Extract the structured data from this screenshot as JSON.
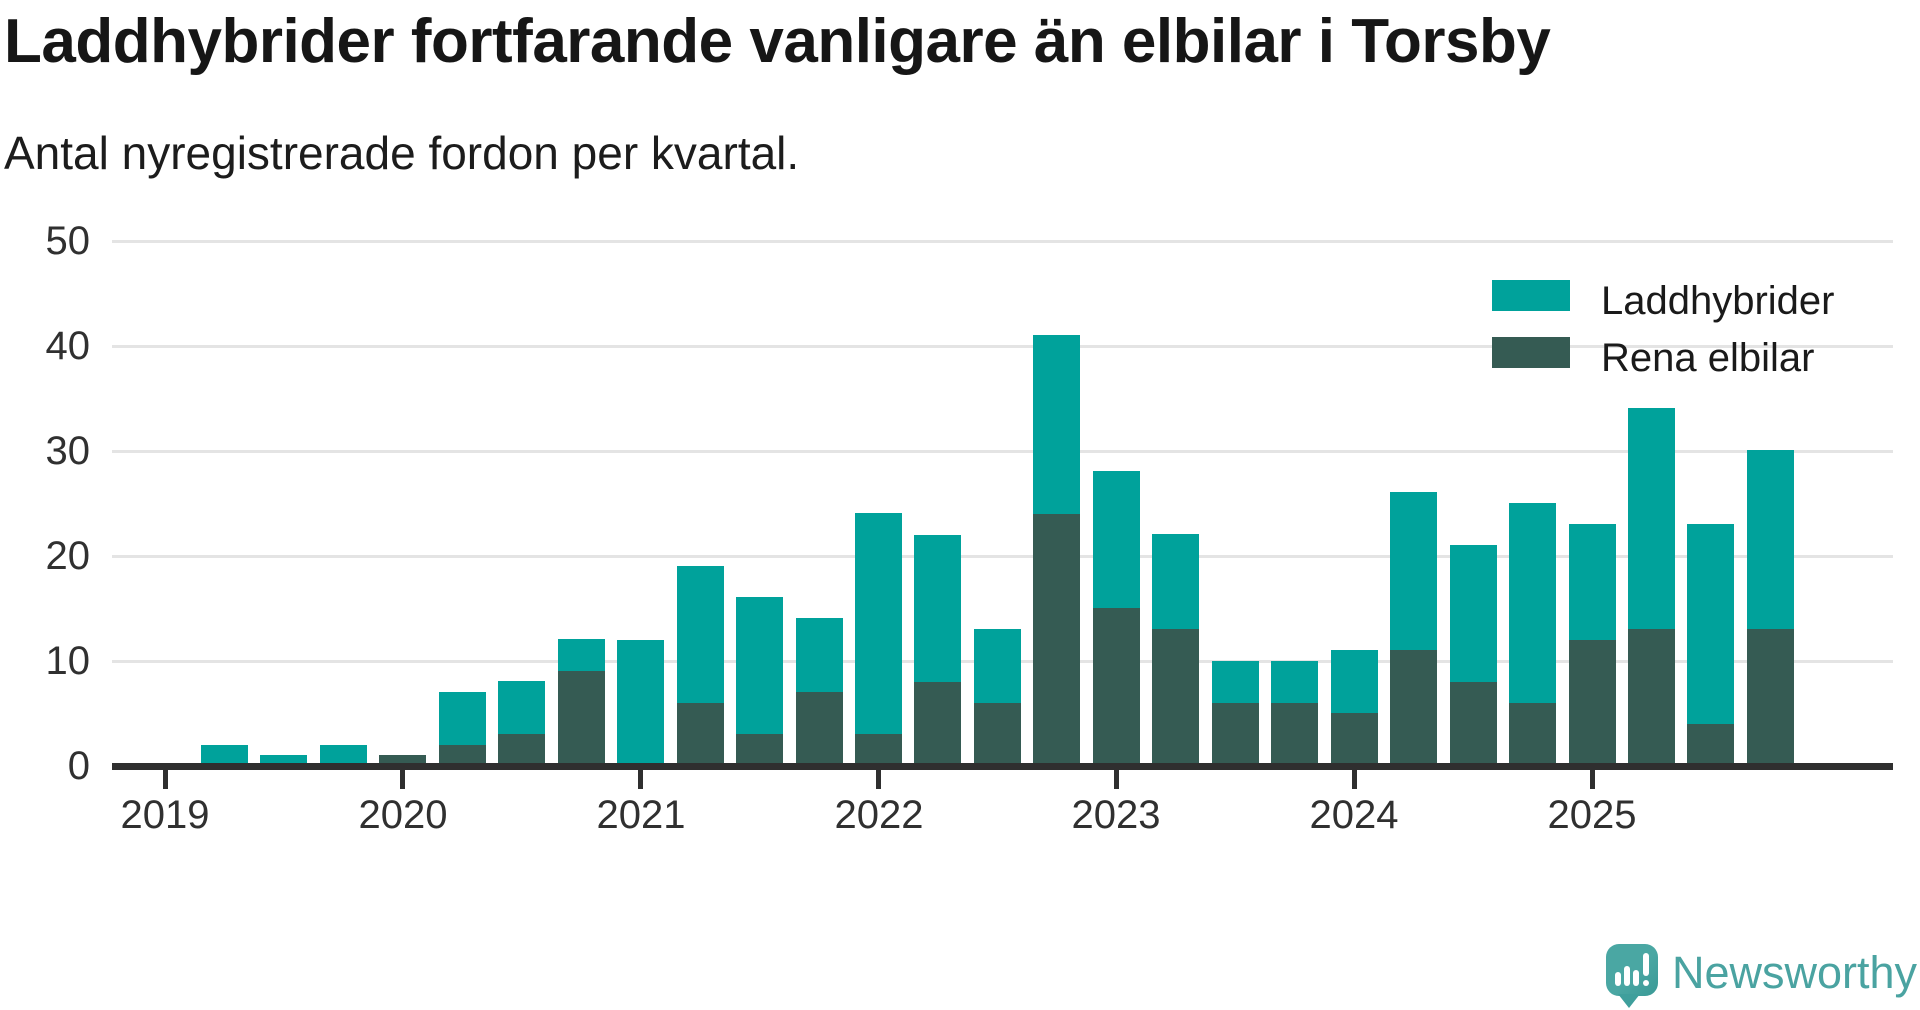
{
  "title": "Laddhybrider fortfarande vanligare än elbilar i Torsby",
  "subtitle": "Antal nyregistrerade fordon per kvartal.",
  "colors": {
    "laddhybrider": "#00a29b",
    "rena_elbilar": "#355b53",
    "gridline": "#e4e4e4",
    "axis": "#2f2f2f",
    "text": "#303030",
    "logo": "#4aa3a1"
  },
  "legend": {
    "items": [
      {
        "label": "Laddhybrider",
        "color": "#00a29b"
      },
      {
        "label": "Rena elbilar",
        "color": "#355b53"
      }
    ],
    "position": "top-right"
  },
  "branding": {
    "name": "Newsworthy",
    "icon": "speech-bubble-bar-chart-icon"
  },
  "chart_data": {
    "type": "bar",
    "stacked": true,
    "stack_order_bottom_to_top": [
      "Rena elbilar",
      "Laddhybrider"
    ],
    "title": "Laddhybrider fortfarande vanligare än elbilar i Torsby",
    "subtitle": "Antal nyregistrerade fordon per kvartal.",
    "xlabel": "",
    "ylabel": "",
    "ylim": [
      0,
      50
    ],
    "y_ticks": [
      50,
      40,
      30,
      20,
      10,
      0
    ],
    "grid": "horizontal",
    "x_year_labels": [
      "2019",
      "2020",
      "2021",
      "2022",
      "2023",
      "2024",
      "2025"
    ],
    "x": [
      "2019 Q1",
      "2019 Q2",
      "2019 Q3",
      "2019 Q4",
      "2020 Q1",
      "2020 Q2",
      "2020 Q3",
      "2020 Q4",
      "2021 Q1",
      "2021 Q2",
      "2021 Q3",
      "2021 Q4",
      "2022 Q1",
      "2022 Q2",
      "2022 Q3",
      "2022 Q4",
      "2023 Q1",
      "2023 Q2",
      "2023 Q3",
      "2023 Q4",
      "2024 Q1",
      "2024 Q2",
      "2024 Q3",
      "2024 Q4",
      "2025 Q1",
      "2025 Q2",
      "2025 Q3",
      "2025 Q4"
    ],
    "series": [
      {
        "name": "Rena elbilar",
        "color": "#355b53",
        "values": [
          0,
          0,
          0,
          0,
          1,
          2,
          3,
          9,
          0,
          6,
          3,
          7,
          3,
          8,
          6,
          24,
          15,
          13,
          6,
          6,
          5,
          11,
          8,
          6,
          12,
          13,
          4,
          13
        ]
      },
      {
        "name": "Laddhybrider",
        "color": "#00a29b",
        "values": [
          0,
          2,
          1,
          2,
          0,
          5,
          5,
          3,
          12,
          13,
          13,
          7,
          21,
          14,
          7,
          17,
          13,
          9,
          4,
          4,
          6,
          15,
          13,
          19,
          11,
          21,
          19,
          17
        ]
      }
    ],
    "totals": [
      0,
      2,
      1,
      2,
      1,
      7,
      8,
      12,
      12,
      19,
      16,
      14,
      24,
      22,
      13,
      41,
      28,
      22,
      10,
      10,
      11,
      26,
      21,
      25,
      23,
      34,
      23,
      30
    ]
  }
}
